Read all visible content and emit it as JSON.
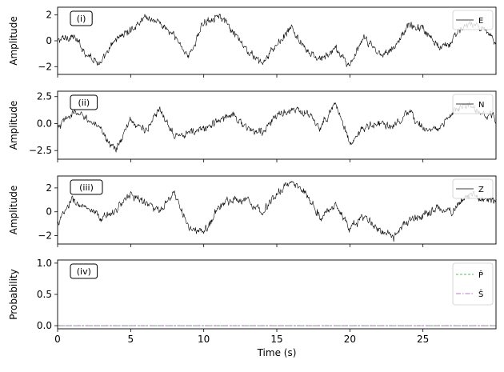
{
  "chart_data": [
    {
      "type": "line",
      "panel_label": "(i)",
      "ylabel": "Amplitude",
      "xlim": [
        0,
        30
      ],
      "ylim": [
        -2.6,
        2.6
      ],
      "yticks": [
        -2,
        0,
        2
      ],
      "ytick_labels": [
        "−2",
        "0",
        "2"
      ],
      "legend": "top-right",
      "series": [
        {
          "name": "E",
          "color": "#000000",
          "x": [
            0,
            1,
            2,
            3,
            4,
            5,
            6,
            7,
            8,
            9,
            10,
            11,
            12,
            13,
            14,
            15,
            16,
            17,
            18,
            19,
            20,
            21,
            22,
            23,
            24,
            25,
            26,
            27,
            28,
            29,
            30
          ],
          "y": [
            0.0,
            0.4,
            -1.0,
            -1.8,
            0.2,
            0.8,
            1.9,
            1.4,
            0.3,
            -1.2,
            1.4,
            2.1,
            0.6,
            -0.8,
            -1.8,
            -0.3,
            1.0,
            -0.8,
            -1.5,
            -0.6,
            -1.9,
            0.2,
            -1.0,
            -0.6,
            1.2,
            1.0,
            -0.4,
            0.0,
            1.4,
            0.9,
            0.0
          ]
        }
      ]
    },
    {
      "type": "line",
      "panel_label": "(ii)",
      "ylabel": "Amplitude",
      "xlim": [
        0,
        30
      ],
      "ylim": [
        -3.3,
        3.0
      ],
      "yticks": [
        -2.5,
        0.0,
        2.5
      ],
      "ytick_labels": [
        "−2.5",
        "0.0",
        "2.5"
      ],
      "legend": "top-right",
      "series": [
        {
          "name": "N",
          "color": "#000000",
          "x": [
            0,
            1,
            2,
            3,
            4,
            5,
            6,
            7,
            8,
            9,
            10,
            11,
            12,
            13,
            14,
            15,
            16,
            17,
            18,
            19,
            20,
            21,
            22,
            23,
            24,
            25,
            26,
            27,
            28,
            29,
            30
          ],
          "y": [
            -0.5,
            1.0,
            0.6,
            -0.8,
            -2.4,
            0.3,
            -0.6,
            1.2,
            -0.9,
            -0.9,
            -0.5,
            0.2,
            1.0,
            -0.6,
            -0.8,
            0.8,
            1.2,
            1.0,
            -0.4,
            2.0,
            -1.8,
            -0.4,
            0.0,
            -0.3,
            0.9,
            -0.3,
            -0.6,
            0.9,
            1.8,
            0.9,
            0.5
          ]
        }
      ]
    },
    {
      "type": "line",
      "panel_label": "(iii)",
      "ylabel": "Amplitude",
      "xlim": [
        0,
        30
      ],
      "ylim": [
        -2.7,
        3.0
      ],
      "yticks": [
        -2,
        0,
        2
      ],
      "ytick_labels": [
        "−2",
        "0",
        "2"
      ],
      "legend": "top-right",
      "series": [
        {
          "name": "Z",
          "color": "#000000",
          "x": [
            0,
            1,
            2,
            3,
            4,
            5,
            6,
            7,
            8,
            9,
            10,
            11,
            12,
            13,
            14,
            15,
            16,
            17,
            18,
            19,
            20,
            21,
            22,
            23,
            24,
            25,
            26,
            27,
            28,
            29,
            30
          ],
          "y": [
            -1.0,
            1.0,
            0.2,
            -0.6,
            0.2,
            1.5,
            0.8,
            0.0,
            1.5,
            -1.4,
            -1.8,
            0.4,
            1.1,
            1.0,
            0.0,
            1.5,
            2.5,
            1.6,
            -0.5,
            0.6,
            -1.4,
            -0.4,
            -1.5,
            -2.2,
            -0.8,
            -0.3,
            0.4,
            -0.1,
            1.5,
            1.1,
            0.8
          ]
        }
      ]
    },
    {
      "type": "line",
      "panel_label": "(iv)",
      "ylabel": "Probability",
      "xlabel": "Time (s)",
      "xlim": [
        0,
        30
      ],
      "ylim": [
        -0.05,
        1.05
      ],
      "yticks": [
        0.0,
        0.5,
        1.0
      ],
      "ytick_labels": [
        "0.0",
        "0.5",
        "1.0"
      ],
      "xticks": [
        0,
        5,
        10,
        15,
        20,
        25
      ],
      "xtick_labels": [
        "0",
        "5",
        "10",
        "15",
        "20",
        "25"
      ],
      "legend": "top-right",
      "series": [
        {
          "name": "P̂",
          "color": "#2ca02c",
          "style": "dashed",
          "x": [
            0,
            30
          ],
          "y": [
            0.0,
            0.0
          ]
        },
        {
          "name": "Ŝ",
          "color": "#9b4fb0",
          "style": "dashdot",
          "x": [
            0,
            30
          ],
          "y": [
            0.0,
            0.0
          ]
        }
      ]
    }
  ]
}
